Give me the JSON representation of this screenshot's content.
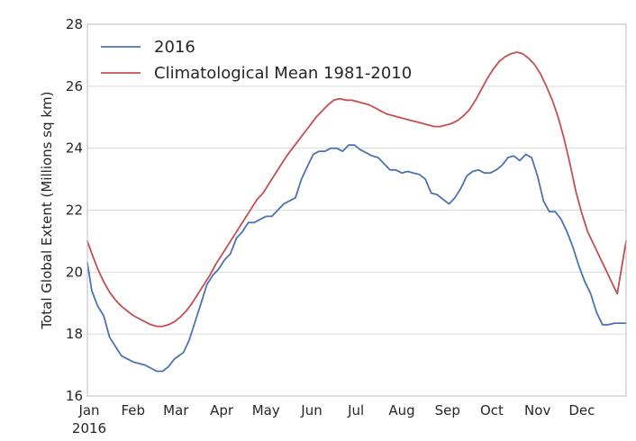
{
  "chart_data": {
    "type": "line",
    "xlabel": "",
    "ylabel": "Total Global Extent (Millions sq km)",
    "ylim": [
      16,
      28
    ],
    "xlim": [
      1,
      366
    ],
    "grid": true,
    "legend_position": "top-left",
    "x_ticks": [
      {
        "day": 1,
        "label": "Jan",
        "sublabel": "2016"
      },
      {
        "day": 32,
        "label": "Feb"
      },
      {
        "day": 61,
        "label": "Mar"
      },
      {
        "day": 92,
        "label": "Apr"
      },
      {
        "day": 122,
        "label": "May"
      },
      {
        "day": 153,
        "label": "Jun"
      },
      {
        "day": 183,
        "label": "Jul"
      },
      {
        "day": 214,
        "label": "Aug"
      },
      {
        "day": 245,
        "label": "Sep"
      },
      {
        "day": 275,
        "label": "Oct"
      },
      {
        "day": 306,
        "label": "Nov"
      },
      {
        "day": 336,
        "label": "Dec"
      }
    ],
    "y_ticks": [
      16,
      18,
      20,
      22,
      24,
      26,
      28
    ],
    "series": [
      {
        "name": "2016",
        "color": "#4c72b0",
        "x": [
          1,
          4,
          8,
          12,
          16,
          20,
          24,
          28,
          32,
          36,
          40,
          44,
          48,
          52,
          56,
          60,
          63,
          66,
          70,
          74,
          78,
          82,
          86,
          90,
          94,
          98,
          102,
          106,
          110,
          114,
          118,
          122,
          126,
          130,
          134,
          138,
          142,
          146,
          150,
          154,
          158,
          162,
          166,
          170,
          174,
          178,
          182,
          186,
          190,
          194,
          198,
          202,
          206,
          210,
          214,
          218,
          222,
          226,
          230,
          234,
          238,
          242,
          246,
          250,
          254,
          258,
          262,
          266,
          270,
          274,
          278,
          282,
          286,
          290,
          294,
          298,
          302,
          306,
          310,
          314,
          318,
          322,
          326,
          330,
          334,
          338,
          342,
          346,
          350,
          354,
          358,
          362,
          366
        ],
        "values": [
          20.3,
          19.4,
          18.9,
          18.6,
          17.9,
          17.6,
          17.3,
          17.2,
          17.1,
          17.05,
          17.0,
          16.9,
          16.8,
          16.8,
          16.95,
          17.2,
          17.3,
          17.4,
          17.8,
          18.4,
          19.0,
          19.6,
          19.9,
          20.1,
          20.4,
          20.6,
          21.1,
          21.3,
          21.6,
          21.6,
          21.7,
          21.8,
          21.8,
          22.0,
          22.2,
          22.3,
          22.4,
          23.0,
          23.4,
          23.8,
          23.9,
          23.9,
          24.0,
          24.0,
          23.9,
          24.1,
          24.1,
          23.95,
          23.85,
          23.75,
          23.7,
          23.5,
          23.3,
          23.3,
          23.2,
          23.25,
          23.2,
          23.15,
          23.0,
          22.55,
          22.5,
          22.35,
          22.2,
          22.4,
          22.7,
          23.1,
          23.25,
          23.3,
          23.2,
          23.2,
          23.3,
          23.45,
          23.7,
          23.75,
          23.6,
          23.8,
          23.7,
          23.1,
          22.3,
          21.95,
          21.95,
          21.7,
          21.3,
          20.8,
          20.2,
          19.7,
          19.3,
          18.7,
          18.3,
          18.3,
          18.35,
          18.35,
          18.35
        ]
      },
      {
        "name": "Climatological Mean 1981-2010",
        "color": "#c44e52",
        "x": [
          1,
          4,
          8,
          12,
          16,
          20,
          24,
          28,
          32,
          36,
          40,
          44,
          48,
          52,
          56,
          60,
          64,
          68,
          72,
          76,
          80,
          84,
          88,
          92,
          96,
          100,
          104,
          108,
          112,
          116,
          120,
          124,
          128,
          132,
          136,
          140,
          144,
          148,
          152,
          156,
          160,
          164,
          168,
          172,
          176,
          180,
          184,
          188,
          192,
          196,
          200,
          204,
          208,
          212,
          216,
          220,
          224,
          228,
          232,
          236,
          240,
          244,
          248,
          252,
          256,
          260,
          264,
          268,
          272,
          276,
          280,
          284,
          288,
          292,
          296,
          300,
          304,
          308,
          312,
          316,
          320,
          324,
          328,
          332,
          336,
          340,
          344,
          348,
          352,
          356,
          360,
          366
        ],
        "values": [
          21.0,
          20.6,
          20.1,
          19.7,
          19.35,
          19.1,
          18.9,
          18.75,
          18.6,
          18.5,
          18.4,
          18.3,
          18.25,
          18.25,
          18.3,
          18.4,
          18.55,
          18.75,
          19.0,
          19.3,
          19.6,
          19.9,
          20.25,
          20.55,
          20.85,
          21.15,
          21.45,
          21.75,
          22.05,
          22.35,
          22.55,
          22.85,
          23.15,
          23.45,
          23.75,
          24.0,
          24.25,
          24.5,
          24.75,
          25.0,
          25.2,
          25.4,
          25.55,
          25.6,
          25.55,
          25.55,
          25.5,
          25.45,
          25.4,
          25.3,
          25.2,
          25.1,
          25.05,
          25.0,
          24.95,
          24.9,
          24.85,
          24.8,
          24.75,
          24.7,
          24.7,
          24.75,
          24.8,
          24.9,
          25.05,
          25.25,
          25.55,
          25.9,
          26.25,
          26.55,
          26.8,
          26.95,
          27.05,
          27.1,
          27.05,
          26.9,
          26.7,
          26.4,
          26.0,
          25.55,
          25.0,
          24.3,
          23.5,
          22.6,
          21.9,
          21.3,
          20.9,
          20.5,
          20.1,
          19.7,
          19.3,
          21.0
        ]
      }
    ]
  }
}
